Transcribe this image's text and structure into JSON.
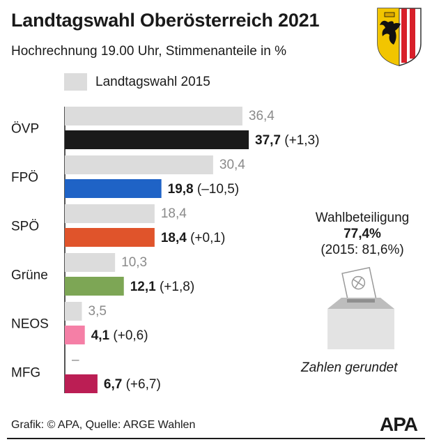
{
  "header": {
    "title": "Landtagswahl Oberösterreich 2021",
    "subtitle": "Hochrechnung 19.00 Uhr, Stimmenanteile in %"
  },
  "legend": {
    "label": "Landtagswahl 2015"
  },
  "chart_data": {
    "type": "bar",
    "orientation": "horizontal",
    "categories": [
      "ÖVP",
      "FPÖ",
      "SPÖ",
      "Grüne",
      "NEOS",
      "MFG"
    ],
    "series": [
      {
        "name": "Landtagswahl 2015",
        "values": [
          36.4,
          30.4,
          18.4,
          10.3,
          3.5,
          null
        ],
        "labels": [
          "36,4",
          "30,4",
          "18,4",
          "10,3",
          "3,5",
          "–"
        ],
        "color": "#dcdcdc"
      },
      {
        "values": [
          37.7,
          19.8,
          18.4,
          12.1,
          4.1,
          6.7
        ],
        "labels": [
          "37,7",
          "19,8",
          "18,4",
          "12,1",
          "4,1",
          "6,7"
        ],
        "colors": [
          "#1a1a1a",
          "#1f63c6",
          "#e0542b",
          "#7da655",
          "#f57fa6",
          "#bb1e54"
        ]
      }
    ],
    "changes": [
      "(+1,3)",
      "(–10,5)",
      "(+0,1)",
      "(+1,8)",
      "(+0,6)",
      "(+6,7)"
    ],
    "xlim": [
      0,
      37.7
    ],
    "grid": false,
    "legend_position": "top-left"
  },
  "turnout": {
    "label": "Wahlbeteiligung",
    "value": "77,4%",
    "previous": "(2015: 81,6%)"
  },
  "note": "Zahlen gerundet",
  "footer": {
    "source": "Grafik: © APA, Quelle: ARGE Wahlen",
    "logo": "APA"
  },
  "colors": {
    "prev_bar": "#dcdcdc",
    "prev_label": "#8a8a8a",
    "text": "#1a1a1a"
  }
}
